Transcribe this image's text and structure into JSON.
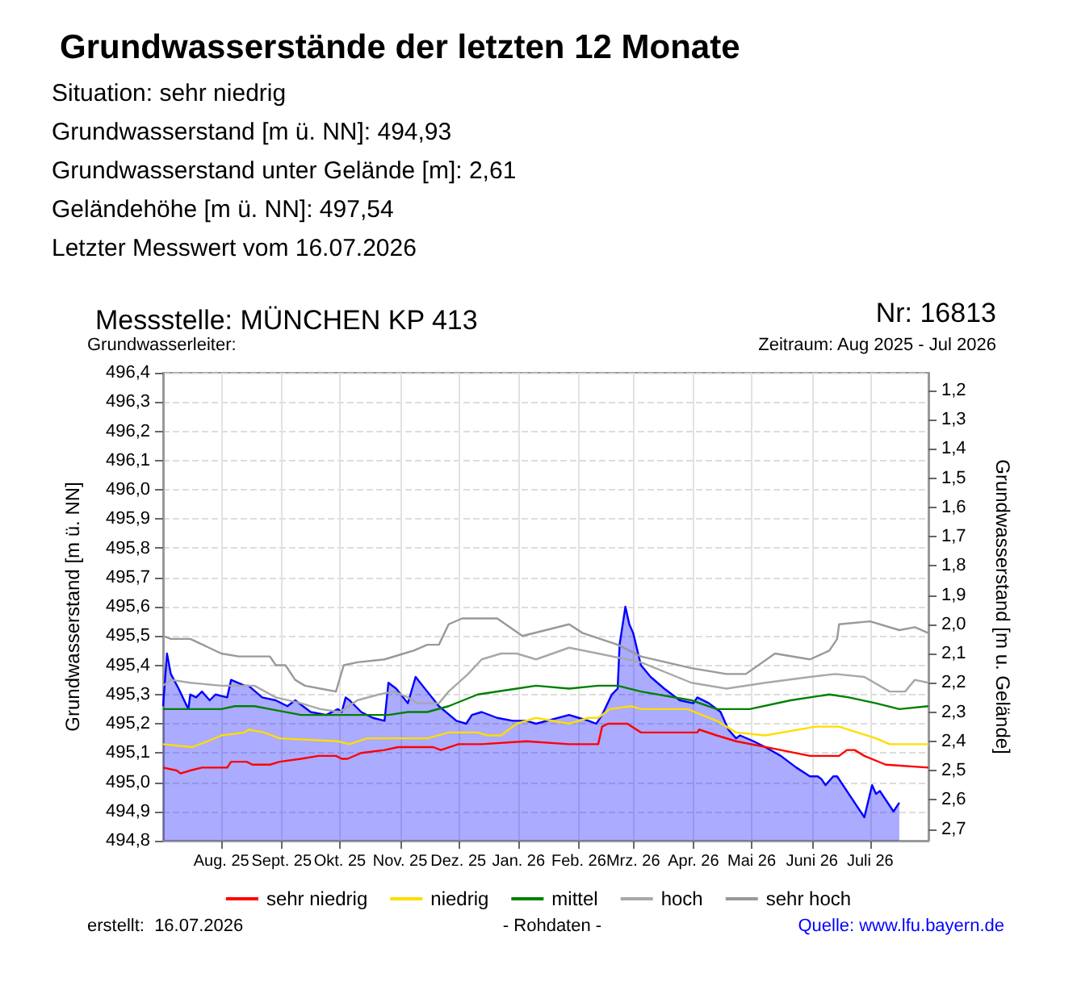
{
  "chart_data": {
    "type": "line",
    "title": "Grundwasserstände der letzten 12 Monate",
    "subtitle": "Messstelle: MÜNCHEN KP 413",
    "annotations": [
      "Situation: sehr niedrig",
      "Grundwasserstand [m ü. NN]: 494,93",
      "Grundwasserstand unter Gelände [m]: 2,61",
      "Geländehöhe [m ü. NN]: 497,54",
      "Letzter Messwert vom 16.07.2026",
      "Nr: 16813",
      "Grundwasserleiter:",
      "Zeitraum: Aug 2025 - Jul 2026",
      "erstellt:  16.07.2026",
      "- Rohdaten -",
      "Quelle: www.lfu.bayern.de"
    ],
    "ylabel": "Grundwasserstand [m ü. NN]",
    "y2label": "Grundwasserstand [m u. Gelände]",
    "xlim": [
      "2025-07-02",
      "2026-07-31"
    ],
    "xticks": [
      {
        "value": "2025-08-01",
        "label": "Aug. 25"
      },
      {
        "value": "2025-09-01",
        "label": "Sept. 25"
      },
      {
        "value": "2025-10-01",
        "label": "Okt. 25"
      },
      {
        "value": "2025-11-01",
        "label": "Nov. 25"
      },
      {
        "value": "2025-12-01",
        "label": "Dez. 25"
      },
      {
        "value": "2026-01-01",
        "label": "Jan. 26"
      },
      {
        "value": "2026-02-01",
        "label": "Feb. 26"
      },
      {
        "value": "2026-03-01",
        "label": "Mrz. 26"
      },
      {
        "value": "2026-04-01",
        "label": "Apr. 26"
      },
      {
        "value": "2026-05-01",
        "label": "Mai 26"
      },
      {
        "value": "2026-06-01",
        "label": "Juni 26"
      },
      {
        "value": "2026-07-01",
        "label": "Juli 26"
      }
    ],
    "ylim": [
      494.8,
      496.4
    ],
    "yticks": [
      {
        "value": 494.8,
        "label": "494,8"
      },
      {
        "value": 494.9,
        "label": "494,9"
      },
      {
        "value": 495.0,
        "label": "495,0"
      },
      {
        "value": 495.1,
        "label": "495,1"
      },
      {
        "value": 495.2,
        "label": "495,2"
      },
      {
        "value": 495.3,
        "label": "495,3"
      },
      {
        "value": 495.4,
        "label": "495,4"
      },
      {
        "value": 495.5,
        "label": "495,5"
      },
      {
        "value": 495.6,
        "label": "495,6"
      },
      {
        "value": 495.7,
        "label": "495,7"
      },
      {
        "value": 495.8,
        "label": "495,8"
      },
      {
        "value": 495.9,
        "label": "495,9"
      },
      {
        "value": 496.0,
        "label": "496,0"
      },
      {
        "value": 496.1,
        "label": "496,1"
      },
      {
        "value": 496.2,
        "label": "496,2"
      },
      {
        "value": 496.3,
        "label": "496,3"
      },
      {
        "value": 496.4,
        "label": "496,4"
      }
    ],
    "y2lim": [
      2.74,
      1.14
    ],
    "y2ticks": [
      {
        "value": 1.2,
        "label": "1,2"
      },
      {
        "value": 1.3,
        "label": "1,3"
      },
      {
        "value": 1.4,
        "label": "1,4"
      },
      {
        "value": 1.5,
        "label": "1,5"
      },
      {
        "value": 1.6,
        "label": "1,6"
      },
      {
        "value": 1.7,
        "label": "1,7"
      },
      {
        "value": 1.8,
        "label": "1,8"
      },
      {
        "value": 1.9,
        "label": "1,9"
      },
      {
        "value": 2.0,
        "label": "2,0"
      },
      {
        "value": 2.1,
        "label": "2,1"
      },
      {
        "value": 2.2,
        "label": "2,2"
      },
      {
        "value": 2.3,
        "label": "2,3"
      },
      {
        "value": 2.4,
        "label": "2,4"
      },
      {
        "value": 2.5,
        "label": "2,5"
      },
      {
        "value": 2.6,
        "label": "2,6"
      },
      {
        "value": 2.7,
        "label": "2,7"
      }
    ],
    "grid": true,
    "legend": "bottom",
    "marker": "none",
    "series": [
      {
        "type": "area",
        "color": "#0000ff",
        "x": [
          "2025-07-02",
          "2025-07-04",
          "2025-07-06",
          "2025-07-10",
          "2025-07-15",
          "2025-07-16",
          "2025-07-19",
          "2025-07-22",
          "2025-07-26",
          "2025-07-29",
          "2025-08-04",
          "2025-08-06",
          "2025-08-13",
          "2025-08-15",
          "2025-08-22",
          "2025-08-29",
          "2025-09-04",
          "2025-09-08",
          "2025-09-16",
          "2025-09-24",
          "2025-09-30",
          "2025-10-02",
          "2025-10-04",
          "2025-10-06",
          "2025-10-12",
          "2025-10-18",
          "2025-10-24",
          "2025-10-26",
          "2025-10-30",
          "2025-11-05",
          "2025-11-09",
          "2025-11-15",
          "2025-11-21",
          "2025-11-30",
          "2025-12-05",
          "2025-12-08",
          "2025-12-13",
          "2025-12-21",
          "2025-12-29",
          "2026-01-05",
          "2026-01-10",
          "2026-01-27",
          "2026-02-01",
          "2026-02-06",
          "2026-02-10",
          "2026-02-13",
          "2026-02-18",
          "2026-02-21",
          "2026-02-22",
          "2026-02-25",
          "2026-02-27",
          "2026-03-01",
          "2026-03-05",
          "2026-03-10",
          "2026-03-17",
          "2026-03-25",
          "2026-04-01",
          "2026-04-03",
          "2026-04-09",
          "2026-04-15",
          "2026-04-19",
          "2026-04-23",
          "2026-04-25",
          "2026-05-02",
          "2026-05-08",
          "2026-05-16",
          "2026-05-24",
          "2026-05-31",
          "2026-06-04",
          "2026-06-06",
          "2026-06-08",
          "2026-06-12",
          "2026-06-14",
          "2026-06-21",
          "2026-06-28",
          "2026-07-02",
          "2026-07-04",
          "2026-07-06",
          "2026-07-13",
          "2026-07-16"
        ],
        "values": [
          495.26,
          495.44,
          495.37,
          495.32,
          495.25,
          495.3,
          495.29,
          495.31,
          495.28,
          495.3,
          495.29,
          495.35,
          495.33,
          495.33,
          495.29,
          495.28,
          495.26,
          495.28,
          495.24,
          495.23,
          495.25,
          495.24,
          495.29,
          495.28,
          495.24,
          495.22,
          495.21,
          495.34,
          495.32,
          495.27,
          495.36,
          495.31,
          495.26,
          495.21,
          495.2,
          495.23,
          495.24,
          495.22,
          495.21,
          495.21,
          495.2,
          495.23,
          495.22,
          495.21,
          495.2,
          495.23,
          495.3,
          495.32,
          495.47,
          495.6,
          495.54,
          495.51,
          495.4,
          495.36,
          495.32,
          495.28,
          495.27,
          495.29,
          495.27,
          495.24,
          495.18,
          495.15,
          495.16,
          495.14,
          495.12,
          495.09,
          495.05,
          495.02,
          495.02,
          495.01,
          494.99,
          495.02,
          495.02,
          494.95,
          494.88,
          494.99,
          494.96,
          494.97,
          494.9,
          494.93
        ]
      },
      {
        "name": "sehr niedrig",
        "color": "#ff0000",
        "x": [
          "2025-07-02",
          "2025-07-09",
          "2025-07-11",
          "2025-07-16",
          "2025-07-22",
          "2025-08-04",
          "2025-08-06",
          "2025-08-14",
          "2025-08-17",
          "2025-08-26",
          "2025-08-31",
          "2025-09-11",
          "2025-09-20",
          "2025-09-29",
          "2025-10-02",
          "2025-10-05",
          "2025-10-12",
          "2025-10-24",
          "2025-10-31",
          "2025-11-18",
          "2025-11-22",
          "2025-12-01",
          "2025-12-06",
          "2025-12-13",
          "2026-01-05",
          "2026-01-27",
          "2026-02-11",
          "2026-02-13",
          "2026-02-16",
          "2026-02-26",
          "2026-03-05",
          "2026-04-03",
          "2026-04-04",
          "2026-04-13",
          "2026-04-23",
          "2026-05-16",
          "2026-05-31",
          "2026-06-15",
          "2026-06-19",
          "2026-06-23",
          "2026-06-28",
          "2026-07-09",
          "2026-07-31"
        ],
        "values": [
          495.05,
          495.04,
          495.03,
          495.04,
          495.05,
          495.05,
          495.07,
          495.07,
          495.06,
          495.06,
          495.07,
          495.08,
          495.09,
          495.09,
          495.08,
          495.08,
          495.1,
          495.11,
          495.12,
          495.12,
          495.11,
          495.13,
          495.13,
          495.13,
          495.14,
          495.13,
          495.13,
          495.19,
          495.2,
          495.2,
          495.17,
          495.17,
          495.18,
          495.16,
          495.14,
          495.11,
          495.09,
          495.09,
          495.11,
          495.11,
          495.09,
          495.06,
          495.05
        ]
      },
      {
        "name": "niedrig",
        "color": "#ffdd00",
        "x": [
          "2025-07-02",
          "2025-07-17",
          "2025-07-25",
          "2025-08-01",
          "2025-08-13",
          "2025-08-15",
          "2025-08-23",
          "2025-08-31",
          "2025-09-30",
          "2025-10-06",
          "2025-10-15",
          "2025-11-15",
          "2025-11-26",
          "2025-12-11",
          "2025-12-16",
          "2025-12-23",
          "2025-12-31",
          "2026-01-10",
          "2026-01-27",
          "2026-02-06",
          "2026-02-11",
          "2026-02-17",
          "2026-02-28",
          "2026-03-05",
          "2026-03-29",
          "2026-04-13",
          "2026-04-23",
          "2026-05-08",
          "2026-06-03",
          "2026-06-15",
          "2026-07-04",
          "2026-07-11",
          "2026-07-31"
        ],
        "values": [
          495.13,
          495.12,
          495.14,
          495.16,
          495.17,
          495.18,
          495.17,
          495.15,
          495.14,
          495.13,
          495.15,
          495.15,
          495.17,
          495.17,
          495.16,
          495.16,
          495.2,
          495.22,
          495.2,
          495.22,
          495.22,
          495.25,
          495.26,
          495.25,
          495.25,
          495.21,
          495.17,
          495.16,
          495.19,
          495.19,
          495.15,
          495.13,
          495.13
        ]
      },
      {
        "name": "mittel",
        "color": "#008000",
        "x": [
          "2025-07-02",
          "2025-07-20",
          "2025-08-01",
          "2025-08-08",
          "2025-08-18",
          "2025-08-26",
          "2025-09-11",
          "2025-09-29",
          "2025-10-26",
          "2025-11-05",
          "2025-11-15",
          "2025-11-26",
          "2025-12-11",
          "2025-12-31",
          "2026-01-10",
          "2026-01-27",
          "2026-02-11",
          "2026-02-21",
          "2026-03-05",
          "2026-03-31",
          "2026-04-13",
          "2026-04-30",
          "2026-05-21",
          "2026-06-10",
          "2026-06-20",
          "2026-07-04",
          "2026-07-16",
          "2026-07-31"
        ],
        "values": [
          495.25,
          495.25,
          495.25,
          495.26,
          495.26,
          495.25,
          495.23,
          495.23,
          495.23,
          495.24,
          495.24,
          495.26,
          495.3,
          495.32,
          495.33,
          495.32,
          495.33,
          495.33,
          495.31,
          495.28,
          495.25,
          495.25,
          495.28,
          495.3,
          495.29,
          495.27,
          495.25,
          495.26
        ]
      },
      {
        "name": "hoch",
        "color": "#a8a8a8",
        "x": [
          "2025-07-02",
          "2025-07-06",
          "2025-07-16",
          "2025-08-01",
          "2025-08-18",
          "2025-08-29",
          "2025-09-11",
          "2025-09-21",
          "2025-10-01",
          "2025-10-10",
          "2025-10-21",
          "2025-10-29",
          "2025-11-05",
          "2025-11-10",
          "2025-11-21",
          "2025-11-26",
          "2025-12-06",
          "2025-12-13",
          "2025-12-23",
          "2025-12-31",
          "2026-01-10",
          "2026-01-27",
          "2026-02-11",
          "2026-03-05",
          "2026-03-31",
          "2026-04-18",
          "2026-05-08",
          "2026-05-31",
          "2026-06-13",
          "2026-06-28",
          "2026-07-11",
          "2026-07-19",
          "2026-07-24",
          "2026-07-31"
        ],
        "values": [
          495.33,
          495.35,
          495.34,
          495.33,
          495.33,
          495.29,
          495.27,
          495.25,
          495.24,
          495.28,
          495.3,
          495.31,
          495.29,
          495.27,
          495.27,
          495.31,
          495.37,
          495.42,
          495.44,
          495.44,
          495.42,
          495.46,
          495.44,
          495.41,
          495.34,
          495.32,
          495.34,
          495.36,
          495.37,
          495.36,
          495.31,
          495.31,
          495.35,
          495.34
        ]
      },
      {
        "name": "sehr hoch",
        "color": "#999999",
        "x": [
          "2025-07-02",
          "2025-07-06",
          "2025-07-16",
          "2025-08-01",
          "2025-08-10",
          "2025-08-26",
          "2025-08-29",
          "2025-09-03",
          "2025-09-08",
          "2025-09-13",
          "2025-09-21",
          "2025-09-29",
          "2025-10-03",
          "2025-10-10",
          "2025-10-24",
          "2025-11-03",
          "2025-11-08",
          "2025-11-15",
          "2025-11-21",
          "2025-11-26",
          "2025-12-03",
          "2025-12-11",
          "2025-12-21",
          "2026-01-03",
          "2026-01-27",
          "2026-02-03",
          "2026-02-21",
          "2026-03-05",
          "2026-03-31",
          "2026-04-18",
          "2026-04-28",
          "2026-05-13",
          "2026-05-31",
          "2026-06-10",
          "2026-06-14",
          "2026-06-15",
          "2026-07-01",
          "2026-07-16",
          "2026-07-24",
          "2026-07-31"
        ],
        "values": [
          495.5,
          495.49,
          495.49,
          495.44,
          495.43,
          495.43,
          495.4,
          495.4,
          495.35,
          495.33,
          495.32,
          495.31,
          495.4,
          495.41,
          495.42,
          495.44,
          495.45,
          495.47,
          495.47,
          495.54,
          495.56,
          495.56,
          495.56,
          495.5,
          495.54,
          495.51,
          495.47,
          495.43,
          495.39,
          495.37,
          495.37,
          495.44,
          495.42,
          495.45,
          495.49,
          495.54,
          495.55,
          495.52,
          495.53,
          495.51
        ]
      }
    ]
  }
}
